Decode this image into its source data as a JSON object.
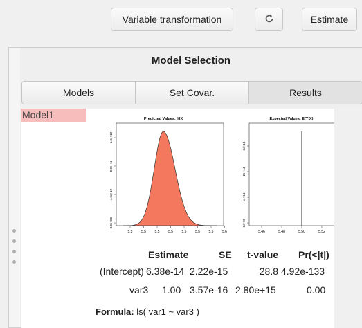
{
  "toolbar": {
    "transform_label": "Variable transformation",
    "refresh_icon": "refresh-icon",
    "estimate_label": "Estimate"
  },
  "panel": {
    "title": "Model Selection",
    "tabs": [
      {
        "label": "Models",
        "active": false
      },
      {
        "label": "Set Covar.",
        "active": false
      },
      {
        "label": "Results",
        "active": true
      }
    ]
  },
  "models": {
    "items": [
      {
        "label": "Model1",
        "selected": true
      }
    ]
  },
  "chart_data": [
    {
      "type": "area",
      "title": "Predicted Values: Y|X",
      "xticks": [
        "5.5",
        "5.5",
        "5.5",
        "5.5",
        "5.5",
        "5.5",
        "5.5",
        "5.6"
      ],
      "yticks": [
        "0.0e+00",
        "4.0e+12",
        "8.0e+12",
        "1.2e+13"
      ],
      "fill_color": "#f4785e",
      "distribution": "density"
    },
    {
      "type": "line",
      "title": "Expected Values: E(Y|X)",
      "xticks": [
        "5.46",
        "5.48",
        "5.50",
        "5.52"
      ],
      "yticks": [
        "0e+00",
        "1e+14",
        "2e+14",
        "3e+14"
      ],
      "spike_x": "5.50"
    }
  ],
  "results": {
    "headers": [
      "Estimate",
      "SE",
      "t-value",
      "Pr(<|t|)"
    ],
    "rows": [
      {
        "name": "(Intercept)",
        "estimate": "6.38e-14",
        "se": "2.22e-15",
        "t": "28.8",
        "p": "4.92e-133"
      },
      {
        "name": "var3",
        "estimate": "1.00",
        "se": "3.57e-16",
        "t": "2.80e+15",
        "p": "0.00"
      }
    ],
    "formula_label": "Formula:",
    "formula": "ls( var1 ~ var3 )"
  }
}
